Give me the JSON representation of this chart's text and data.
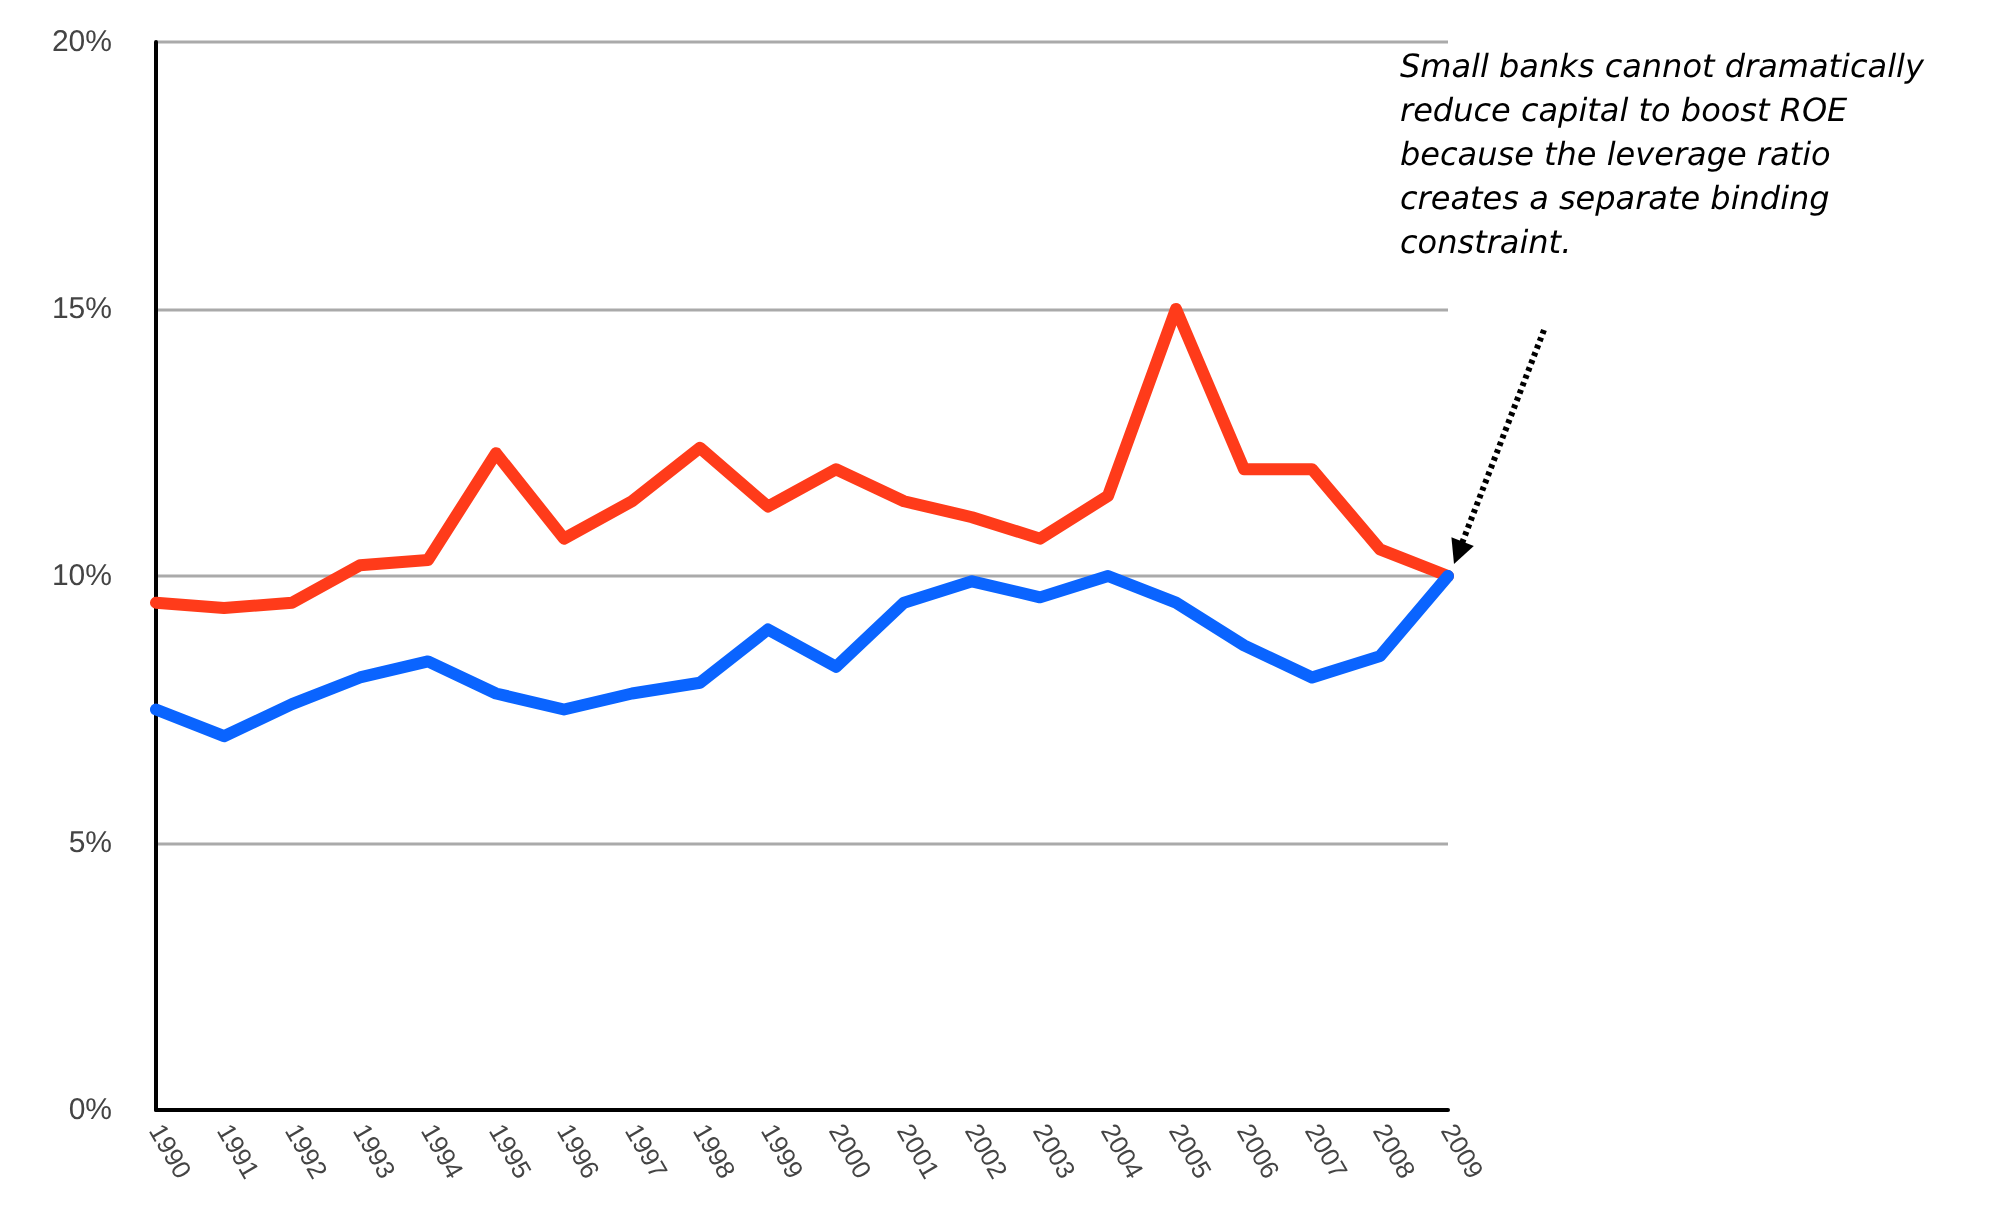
{
  "chart_data": {
    "type": "line",
    "categories": [
      "1990",
      "1991",
      "1992",
      "1993",
      "1994",
      "1995",
      "1996",
      "1997",
      "1998",
      "1999",
      "2000",
      "2001",
      "2002",
      "2003",
      "2004",
      "2005",
      "2006",
      "2007",
      "2008",
      "2009"
    ],
    "series": [
      {
        "color": "#ff3b1a",
        "values": [
          9.5,
          9.4,
          9.5,
          10.2,
          10.3,
          12.3,
          10.7,
          11.4,
          12.4,
          11.3,
          12.0,
          11.4,
          11.1,
          10.7,
          11.5,
          15.0,
          12.0,
          12.0,
          10.5,
          10.0
        ]
      },
      {
        "color": "#0a64ff",
        "values": [
          7.5,
          7.0,
          7.6,
          8.1,
          8.4,
          7.8,
          7.5,
          7.8,
          8.0,
          9.0,
          8.3,
          9.5,
          9.9,
          9.6,
          10.0,
          9.5,
          8.7,
          8.1,
          8.5,
          10.0
        ]
      }
    ],
    "ylim": [
      0,
      20
    ],
    "yticks": [
      {
        "value": 0,
        "label": "0%"
      },
      {
        "value": 5,
        "label": "5%"
      },
      {
        "value": 10,
        "label": "10%"
      },
      {
        "value": 15,
        "label": "15%"
      },
      {
        "value": 20,
        "label": "20%"
      }
    ],
    "grid": "y",
    "marker": "none",
    "line_style": "solid",
    "annotations": [
      "Small banks cannot dramatically reduce capital to boost ROE because the leverage ratio creates a separate binding constraint."
    ]
  }
}
